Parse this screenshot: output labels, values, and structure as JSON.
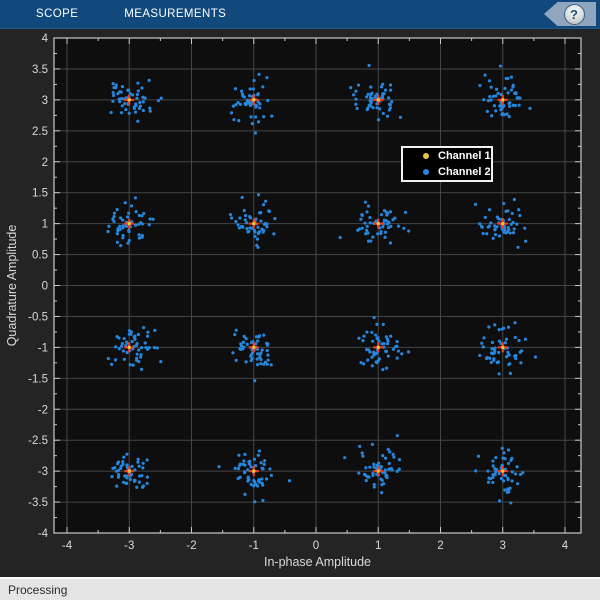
{
  "toolbar": {
    "tabs": [
      {
        "label": "SCOPE"
      },
      {
        "label": "MEASUREMENTS"
      }
    ],
    "help_icon": "?",
    "bg_color": "#11497C",
    "help_tag_color": "#8FA6BE"
  },
  "status_bar": {
    "text": "Processing"
  },
  "chart_data": {
    "type": "scatter",
    "title": "",
    "xlabel": "In-phase Amplitude",
    "ylabel": "Quadrature Amplitude",
    "xlim": [
      -4.21,
      4.26
    ],
    "ylim": [
      -4,
      4
    ],
    "grid": true,
    "x_major_ticks": [
      -4,
      -3,
      -2,
      -1,
      0,
      1,
      2,
      3,
      4
    ],
    "x_minor_step": 0.5,
    "y_major_ticks": [
      -4,
      -3.5,
      -3,
      -2.5,
      -2,
      -1.5,
      -1,
      -0.5,
      0,
      0.5,
      1,
      1.5,
      2,
      2.5,
      3,
      3.5,
      4
    ],
    "y_minor_step": 0.25,
    "legend": {
      "position": "inside-upper-right",
      "entries": [
        {
          "label": "Channel 1",
          "color": "#E9C53A"
        },
        {
          "label": "Channel 2",
          "color": "#2586DC"
        }
      ]
    },
    "reference_points": [
      [
        -3,
        3
      ],
      [
        -1,
        3
      ],
      [
        1,
        3
      ],
      [
        3,
        3
      ],
      [
        -3,
        1
      ],
      [
        -1,
        1
      ],
      [
        1,
        1
      ],
      [
        3,
        1
      ],
      [
        -3,
        -1
      ],
      [
        -1,
        -1
      ],
      [
        1,
        -1
      ],
      [
        3,
        -1
      ],
      [
        -3,
        -3
      ],
      [
        -1,
        -3
      ],
      [
        1,
        -3
      ],
      [
        3,
        -3
      ]
    ],
    "reference_marker": {
      "shape": "plus",
      "color": "#F03B28"
    },
    "channel1_marker": {
      "shape": "dot",
      "color": "#E9C53A"
    },
    "channel2_noise": {
      "points_per_cluster": 52,
      "sigma": 0.17,
      "seed": 7,
      "color": "#2586DC"
    },
    "colors": {
      "plot_bg": "#0e0e0e",
      "figure_bg": "#242424",
      "grid": "#454545",
      "axis_border": "#c9c9c9",
      "tick_label": "#d9d9d9",
      "axis_label": "#d9d9d9"
    }
  }
}
